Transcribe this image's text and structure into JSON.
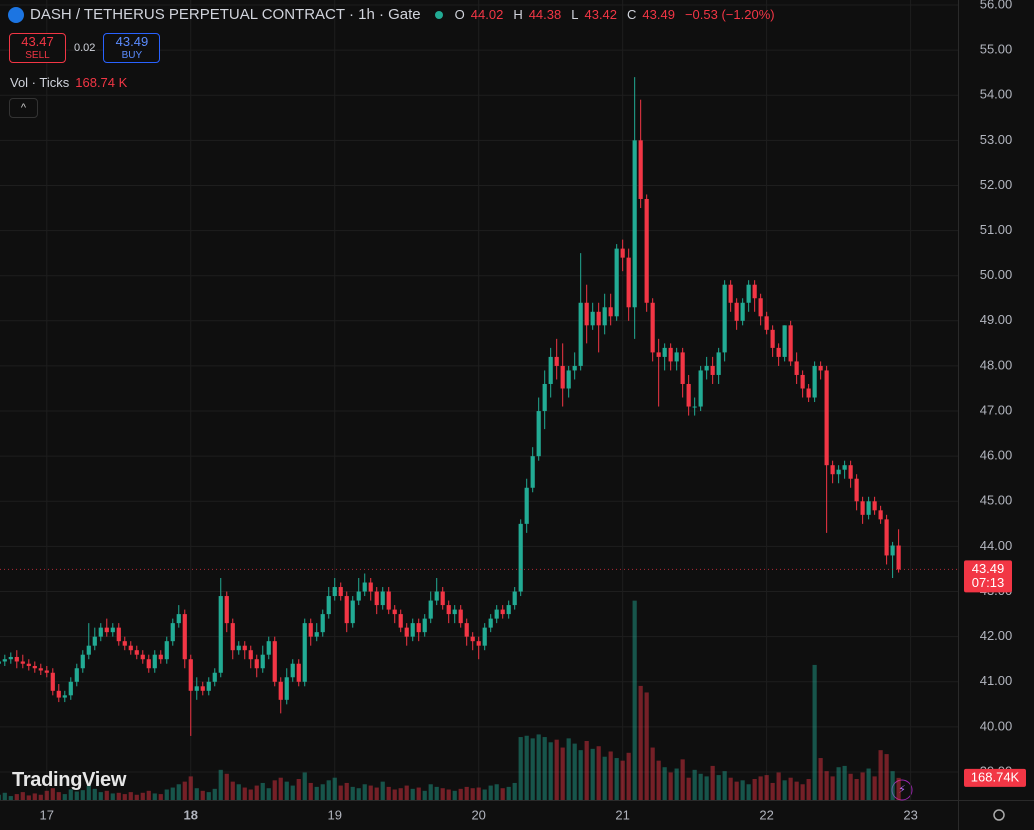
{
  "header": {
    "title": "DASH / TETHERUS PERPETUAL CONTRACT · 1h · Gate",
    "open_label": "O",
    "open": 44.02,
    "high_label": "H",
    "high": 44.38,
    "low_label": "L",
    "low": 43.42,
    "close_label": "C",
    "close": 43.49,
    "change": "−0.53 (−1.20%)",
    "sell_price": 43.47,
    "sell_label": "SELL",
    "spread": 0.02,
    "buy_price": 43.49,
    "buy_label": "BUY",
    "volume_title": "Vol · Ticks",
    "volume_value": "168.74 K",
    "brand": "TradingView"
  },
  "chart_data": {
    "type": "candlestick",
    "up_color": "#22ab94",
    "down_color": "#f23645",
    "grid": true,
    "xlim": [
      0.2,
      159.9
    ],
    "ylim": [
      38.38,
      56.11
    ],
    "xticks": [
      {
        "value": 8,
        "label": "17"
      },
      {
        "value": 32,
        "label": "18"
      },
      {
        "value": 56,
        "label": "19"
      },
      {
        "value": 80,
        "label": "20"
      },
      {
        "value": 104,
        "label": "21"
      },
      {
        "value": 128,
        "label": "22"
      },
      {
        "value": 152,
        "label": "23"
      }
    ],
    "yticks": [
      {
        "value": 39,
        "label": "39.00"
      },
      {
        "value": 40,
        "label": "40.00"
      },
      {
        "value": 41,
        "label": "41.00"
      },
      {
        "value": 42,
        "label": "42.00"
      },
      {
        "value": 43,
        "label": "43.00"
      },
      {
        "value": 44,
        "label": "44.00"
      },
      {
        "value": 45,
        "label": "45.00"
      },
      {
        "value": 46,
        "label": "46.00"
      },
      {
        "value": 47,
        "label": "47.00"
      },
      {
        "value": 48,
        "label": "48.00"
      },
      {
        "value": 49,
        "label": "49.00"
      },
      {
        "value": 50,
        "label": "50.00"
      },
      {
        "value": 51,
        "label": "51.00"
      },
      {
        "value": 52,
        "label": "52.00"
      },
      {
        "value": 53,
        "label": "53.00"
      },
      {
        "value": 54,
        "label": "54.00"
      },
      {
        "value": 55,
        "label": "55.00"
      },
      {
        "value": 56,
        "label": "56.00"
      }
    ],
    "open": [
      41.4,
      41.45,
      41.5,
      41.55,
      41.45,
      41.4,
      41.35,
      41.3,
      41.25,
      41.2,
      40.8,
      40.65,
      40.7,
      41.0,
      41.3,
      41.6,
      41.8,
      42.0,
      42.2,
      42.1,
      42.2,
      41.9,
      41.8,
      41.7,
      41.6,
      41.5,
      41.3,
      41.6,
      41.5,
      41.9,
      42.3,
      42.5,
      41.5,
      40.8,
      40.9,
      40.8,
      41.0,
      41.2,
      42.9,
      42.3,
      41.7,
      41.8,
      41.7,
      41.5,
      41.3,
      41.6,
      41.9,
      41.0,
      40.6,
      41.1,
      41.4,
      41.0,
      42.3,
      42.0,
      42.1,
      42.5,
      42.9,
      43.1,
      42.9,
      42.3,
      42.8,
      43.0,
      43.2,
      43.0,
      42.7,
      43.0,
      42.6,
      42.5,
      42.2,
      42.0,
      42.3,
      42.1,
      42.4,
      42.8,
      43.0,
      42.7,
      42.5,
      42.6,
      42.3,
      42.0,
      41.9,
      41.8,
      42.2,
      42.4,
      42.6,
      42.5,
      42.7,
      43.0,
      44.5,
      45.3,
      46.0,
      47.0,
      47.6,
      48.2,
      48.0,
      47.5,
      47.9,
      48.0,
      49.4,
      48.9,
      49.2,
      48.9,
      49.3,
      49.1,
      50.6,
      50.4,
      49.3,
      53.0,
      51.7,
      49.4,
      48.3,
      48.2,
      48.4,
      48.1,
      48.3,
      47.6,
      47.1,
      47.1,
      47.9,
      48.0,
      47.8,
      48.3,
      49.8,
      49.4,
      49.0,
      49.4,
      49.8,
      49.5,
      49.1,
      48.8,
      48.4,
      48.2,
      48.9,
      48.1,
      47.8,
      47.5,
      47.3,
      48.0,
      47.9,
      45.8,
      45.6,
      45.7,
      45.8,
      45.5,
      45.0,
      44.7,
      45.0,
      44.8,
      44.6,
      43.8,
      44.02
    ],
    "high": [
      41.6,
      41.6,
      41.65,
      41.7,
      41.6,
      41.5,
      41.45,
      41.4,
      41.35,
      41.3,
      40.95,
      40.8,
      41.1,
      41.4,
      41.7,
      42.3,
      42.2,
      42.3,
      42.4,
      42.3,
      42.3,
      42.0,
      41.9,
      41.8,
      41.7,
      41.6,
      41.7,
      41.7,
      42.0,
      42.4,
      42.7,
      42.6,
      41.6,
      41.1,
      41.0,
      41.1,
      41.3,
      43.3,
      43.0,
      42.4,
      41.9,
      41.9,
      41.8,
      41.6,
      41.8,
      42.0,
      42.0,
      41.1,
      41.3,
      41.5,
      41.5,
      42.4,
      42.4,
      42.3,
      42.6,
      43.1,
      43.3,
      43.2,
      43.0,
      42.9,
      43.3,
      43.4,
      43.3,
      43.1,
      43.1,
      43.1,
      42.7,
      42.6,
      42.3,
      42.4,
      42.4,
      42.5,
      43.0,
      43.3,
      43.1,
      42.8,
      42.7,
      42.7,
      42.4,
      42.1,
      42.0,
      42.3,
      42.5,
      42.7,
      42.7,
      42.8,
      43.1,
      44.6,
      45.5,
      46.2,
      47.3,
      47.9,
      48.4,
      48.6,
      48.5,
      48.0,
      48.3,
      50.5,
      49.8,
      49.4,
      49.4,
      49.6,
      49.6,
      50.7,
      50.8,
      50.6,
      54.4,
      53.9,
      51.8,
      49.5,
      48.6,
      48.5,
      48.5,
      48.4,
      48.4,
      47.8,
      47.3,
      48.0,
      48.2,
      48.2,
      48.4,
      49.9,
      49.9,
      49.5,
      49.5,
      49.9,
      49.9,
      49.6,
      49.2,
      48.9,
      48.5,
      48.9,
      49.0,
      48.3,
      47.9,
      47.6,
      48.1,
      48.1,
      48.0,
      45.9,
      45.8,
      45.9,
      45.9,
      45.6,
      45.1,
      45.1,
      45.1,
      44.9,
      44.7,
      44.1,
      44.38
    ],
    "low": [
      41.3,
      41.35,
      41.4,
      41.3,
      41.3,
      41.25,
      41.2,
      41.15,
      41.1,
      40.7,
      40.55,
      40.55,
      40.6,
      40.9,
      41.2,
      41.5,
      41.7,
      41.9,
      42.0,
      42.0,
      41.8,
      41.7,
      41.6,
      41.5,
      41.4,
      41.2,
      41.2,
      41.4,
      41.4,
      41.8,
      42.2,
      41.3,
      39.8,
      40.6,
      40.7,
      40.7,
      40.9,
      41.1,
      42.1,
      41.5,
      41.6,
      41.5,
      41.3,
      41.1,
      41.2,
      41.5,
      40.9,
      40.3,
      40.5,
      41.0,
      40.9,
      40.9,
      41.8,
      41.9,
      42.0,
      42.4,
      42.8,
      42.8,
      42.1,
      42.2,
      42.7,
      42.9,
      42.8,
      42.5,
      42.6,
      42.5,
      42.3,
      42.1,
      41.8,
      41.9,
      41.9,
      42.0,
      42.3,
      42.7,
      42.6,
      42.3,
      42.3,
      42.2,
      41.8,
      41.7,
      41.5,
      41.7,
      42.1,
      42.3,
      42.4,
      42.4,
      42.6,
      42.9,
      44.3,
      45.2,
      45.9,
      46.6,
      47.3,
      47.7,
      47.1,
      47.3,
      47.7,
      47.9,
      48.5,
      48.8,
      48.3,
      48.7,
      48.9,
      49.0,
      50.1,
      49.0,
      48.6,
      51.5,
      49.2,
      48.1,
      47.1,
      47.9,
      47.9,
      47.9,
      47.3,
      46.9,
      46.9,
      47.0,
      47.7,
      47.6,
      47.6,
      48.1,
      49.2,
      48.8,
      48.9,
      49.2,
      49.2,
      48.9,
      48.7,
      48.2,
      48.0,
      48.1,
      48.0,
      47.6,
      47.3,
      47.2,
      47.2,
      47.7,
      44.3,
      45.4,
      45.4,
      45.5,
      45.3,
      44.8,
      44.5,
      44.6,
      44.7,
      44.5,
      43.6,
      43.3,
      43.42
    ],
    "close": [
      41.45,
      41.5,
      41.55,
      41.45,
      41.4,
      41.35,
      41.3,
      41.25,
      41.2,
      40.8,
      40.65,
      40.7,
      41.0,
      41.3,
      41.6,
      41.8,
      42.0,
      42.2,
      42.1,
      42.2,
      41.9,
      41.8,
      41.7,
      41.6,
      41.5,
      41.3,
      41.6,
      41.5,
      41.9,
      42.3,
      42.5,
      41.5,
      40.8,
      40.9,
      40.8,
      41.0,
      41.2,
      42.9,
      42.3,
      41.7,
      41.8,
      41.7,
      41.5,
      41.3,
      41.6,
      41.9,
      41.0,
      40.6,
      41.1,
      41.4,
      41.0,
      42.3,
      42.0,
      42.1,
      42.5,
      42.9,
      43.1,
      42.9,
      42.3,
      42.8,
      43.0,
      43.2,
      43.0,
      42.7,
      43.0,
      42.6,
      42.5,
      42.2,
      42.0,
      42.3,
      42.1,
      42.4,
      42.8,
      43.0,
      42.7,
      42.5,
      42.6,
      42.3,
      42.0,
      41.9,
      41.8,
      42.2,
      42.4,
      42.6,
      42.5,
      42.7,
      43.0,
      44.5,
      45.3,
      46.0,
      47.0,
      47.6,
      48.2,
      48.0,
      47.5,
      47.9,
      48.0,
      49.4,
      48.9,
      49.2,
      48.9,
      49.3,
      49.1,
      50.6,
      50.4,
      49.3,
      53.0,
      51.7,
      49.4,
      48.3,
      48.2,
      48.4,
      48.1,
      48.3,
      47.6,
      47.1,
      47.1,
      47.9,
      48.0,
      47.8,
      48.3,
      49.8,
      49.4,
      49.0,
      49.4,
      49.8,
      49.5,
      49.1,
      48.8,
      48.4,
      48.2,
      48.9,
      48.1,
      47.8,
      47.5,
      47.3,
      48.0,
      47.9,
      45.8,
      45.6,
      45.7,
      45.8,
      45.5,
      45.0,
      44.7,
      45.0,
      44.8,
      44.6,
      43.8,
      44.02,
      43.49
    ],
    "volume_lim": [
      0,
      6100
    ],
    "volume": [
      40,
      55,
      30,
      45,
      60,
      35,
      50,
      40,
      70,
      90,
      60,
      45,
      80,
      65,
      75,
      110,
      85,
      60,
      70,
      50,
      55,
      45,
      60,
      40,
      55,
      70,
      50,
      45,
      80,
      95,
      120,
      140,
      180,
      90,
      70,
      60,
      85,
      230,
      200,
      140,
      120,
      95,
      80,
      110,
      130,
      90,
      150,
      170,
      140,
      110,
      160,
      210,
      130,
      100,
      120,
      150,
      170,
      110,
      130,
      100,
      90,
      120,
      110,
      95,
      140,
      100,
      80,
      90,
      110,
      85,
      95,
      70,
      120,
      100,
      90,
      80,
      70,
      85,
      100,
      90,
      95,
      80,
      110,
      120,
      90,
      100,
      130,
      480,
      490,
      470,
      500,
      480,
      440,
      460,
      400,
      470,
      430,
      380,
      450,
      390,
      410,
      330,
      370,
      320,
      300,
      360,
      1520,
      870,
      820,
      400,
      300,
      250,
      210,
      240,
      310,
      170,
      230,
      200,
      180,
      260,
      190,
      220,
      170,
      140,
      150,
      120,
      160,
      180,
      190,
      130,
      210,
      150,
      170,
      140,
      120,
      160,
      1030,
      320,
      220,
      180,
      250,
      260,
      200,
      160,
      210,
      240,
      180,
      380,
      350,
      220,
      168.74
    ],
    "last_price": 43.49,
    "countdown": "07:13",
    "last_volume_label": "168.74K"
  }
}
